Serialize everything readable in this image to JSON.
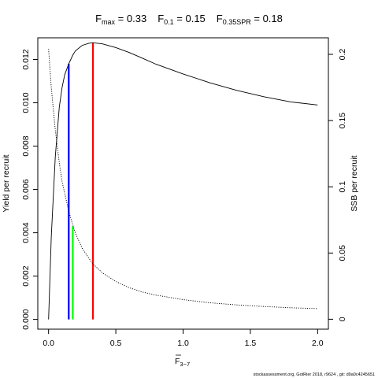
{
  "header": {
    "title_parts": [
      {
        "main": "F",
        "sub": "max",
        "val": " = 0.33"
      },
      {
        "main": "F",
        "sub": "0.1",
        "val": " = 0.15"
      },
      {
        "main": "F",
        "sub": "0.35SPR",
        "val": " = 0.18"
      }
    ]
  },
  "axes": {
    "xlabel_main": "F",
    "xlabel_sub": "3−7",
    "ylabel_left": "Yield per recruit",
    "ylabel_right": "SSB per recruit"
  },
  "footer": {
    "credit": "stockassessment.org, GotRier 2018, r9624 , git: d9a0c4245651"
  },
  "chart_data": {
    "type": "line",
    "x_ticks": [
      0.0,
      0.5,
      1.0,
      1.5,
      2.0
    ],
    "x_tick_labels": [
      "0.0",
      "0.5",
      "1.0",
      "1.5",
      "2.0"
    ],
    "y_left_ticks": [
      0.0,
      0.002,
      0.004,
      0.006,
      0.008,
      0.01,
      0.012
    ],
    "y_left_tick_labels": [
      "0.000",
      "0.002",
      "0.004",
      "0.006",
      "0.008",
      "0.010",
      "0.012"
    ],
    "y_right_ticks": [
      0,
      0.05,
      0.1,
      0.15,
      0.2
    ],
    "y_right_tick_labels": [
      "0",
      "0.05",
      "0.1",
      "0.15",
      "0.2"
    ],
    "xlim": [
      -0.08,
      2.08
    ],
    "ylim_left": [
      -0.00045,
      0.013
    ],
    "ylim_right": [
      -0.0075,
      0.2125
    ],
    "grid": false,
    "legend": "none",
    "series": [
      {
        "axis": "left",
        "style": "solid",
        "color": "#000000",
        "x": [
          0,
          0.02,
          0.05,
          0.08,
          0.1,
          0.12,
          0.15,
          0.18,
          0.2,
          0.25,
          0.3,
          0.33,
          0.4,
          0.5,
          0.6,
          0.7,
          0.8,
          1.0,
          1.2,
          1.4,
          1.6,
          1.8,
          2.0
        ],
        "y": [
          0.0,
          0.0038,
          0.0075,
          0.0098,
          0.0107,
          0.0113,
          0.0118,
          0.0122,
          0.0124,
          0.01265,
          0.01275,
          0.01277,
          0.01272,
          0.01255,
          0.01232,
          0.01205,
          0.01178,
          0.01133,
          0.01092,
          0.01057,
          0.01028,
          0.01004,
          0.0099
        ]
      },
      {
        "axis": "right",
        "style": "dotted",
        "color": "#000000",
        "x": [
          0,
          0.02,
          0.05,
          0.08,
          0.1,
          0.15,
          0.18,
          0.2,
          0.25,
          0.3,
          0.33,
          0.4,
          0.5,
          0.6,
          0.7,
          0.8,
          1.0,
          1.2,
          1.4,
          1.6,
          1.8,
          2.0
        ],
        "y": [
          0.204,
          0.175,
          0.143,
          0.118,
          0.104,
          0.0815,
          0.0712,
          0.065,
          0.0535,
          0.046,
          0.0418,
          0.035,
          0.0285,
          0.0238,
          0.0205,
          0.0182,
          0.0148,
          0.0124,
          0.0108,
          0.0096,
          0.0087,
          0.008
        ]
      }
    ],
    "reference_lines": [
      {
        "label": "F0.1",
        "x": 0.15,
        "y_left": 0.0118,
        "color": "#0000ff"
      },
      {
        "label": "F0.35SPR",
        "x": 0.18,
        "y_left": 0.0043,
        "color": "#00ff00"
      },
      {
        "label": "Fmax",
        "x": 0.33,
        "y_left": 0.01277,
        "color": "#ff0000"
      }
    ]
  }
}
